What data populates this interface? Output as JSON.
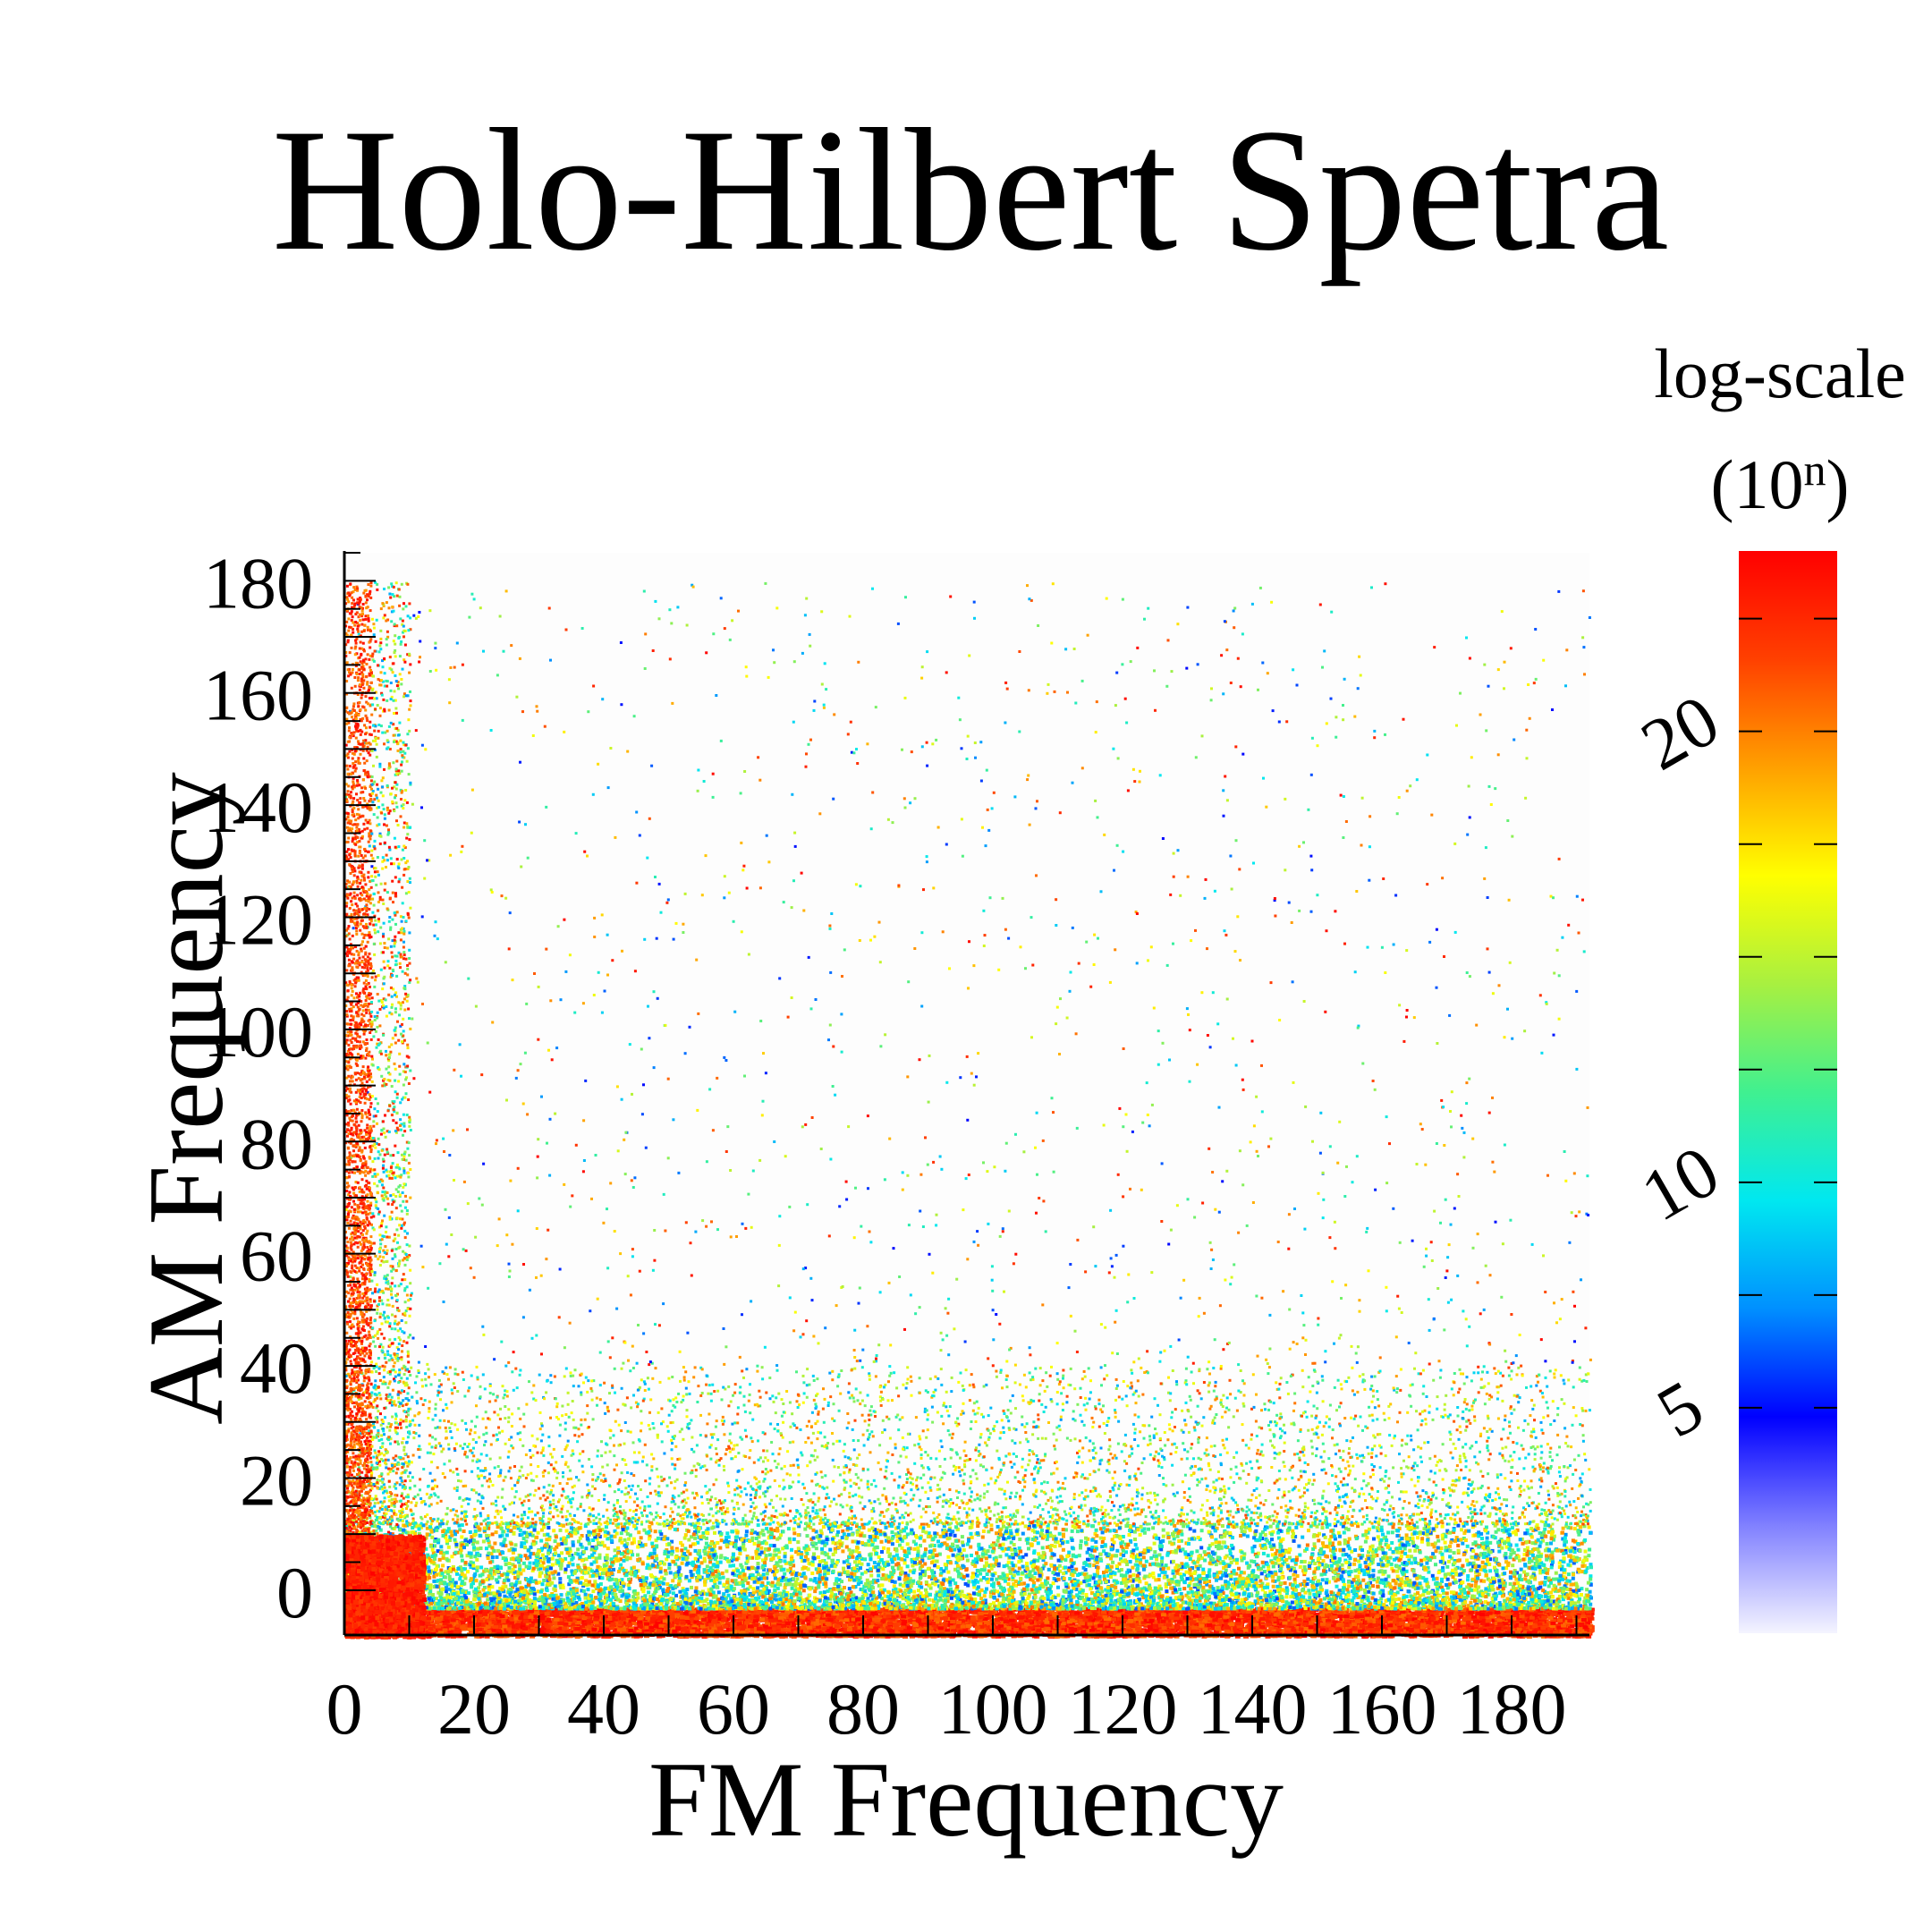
{
  "chart_data": {
    "type": "heatmap",
    "title": "Holo-Hilbert Spetra",
    "xlabel": "FM Frequency",
    "ylabel": "AM Frequency",
    "xlim": [
      0,
      192
    ],
    "ylim": [
      -8,
      185
    ],
    "xticks": [
      0,
      20,
      40,
      60,
      80,
      100,
      120,
      140,
      160,
      180
    ],
    "yticks": [
      0,
      20,
      40,
      60,
      80,
      100,
      120,
      140,
      160,
      180
    ],
    "x_minor_step": 10,
    "y_minor_step": 10,
    "colorbar": {
      "title_line1": "log-scale",
      "title_base": "(10",
      "title_exponent": "n",
      "title_close": ")",
      "range": [
        0,
        24
      ],
      "ticks": [
        5,
        10,
        20
      ],
      "colormap": [
        "#f4f4ff",
        "#8080ff",
        "#0000ff",
        "#0090ff",
        "#00e8f0",
        "#40f090",
        "#a8f040",
        "#ffff00",
        "#ffa000",
        "#ff4000",
        "#ff0000"
      ]
    },
    "structure": {
      "description_of_distribution": "energy concentrated along AM≈-5..0 band across all FM and along FM≈0..5 column across all AM; sparse scatter elsewhere decreasing with AM",
      "dense_bottom_band_am": [
        -8,
        -3
      ],
      "mid_band_am": [
        -3,
        12
      ],
      "scatter_band_am": [
        12,
        40
      ],
      "dense_left_column_fm": [
        0,
        4
      ],
      "left_column_fm": [
        4,
        10
      ]
    }
  }
}
